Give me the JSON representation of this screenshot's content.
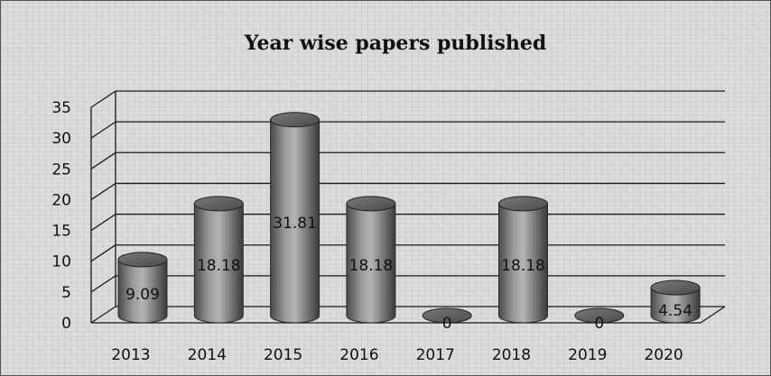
{
  "chart_data": {
    "type": "bar",
    "style": "3d-cylinder",
    "title": "Year wise papers published",
    "xlabel": "",
    "ylabel": "",
    "categories": [
      "2013",
      "2014",
      "2015",
      "2016",
      "2017",
      "2018",
      "2019",
      "2020"
    ],
    "values": [
      9.09,
      18.18,
      31.81,
      18.18,
      0,
      18.18,
      0,
      4.54
    ],
    "data_labels": [
      "9.09",
      "18.18",
      "31.81",
      "18.18",
      "0",
      "18.18",
      "0",
      "4.54"
    ],
    "ylim": [
      0,
      35
    ],
    "yticks": [
      "0",
      "5",
      "10",
      "15",
      "20",
      "25",
      "30",
      "35"
    ],
    "grid": true,
    "legend": "none",
    "colors": {
      "bar": "#808080",
      "grid": "#1a1a1a",
      "background": "#d8d8d8"
    }
  }
}
